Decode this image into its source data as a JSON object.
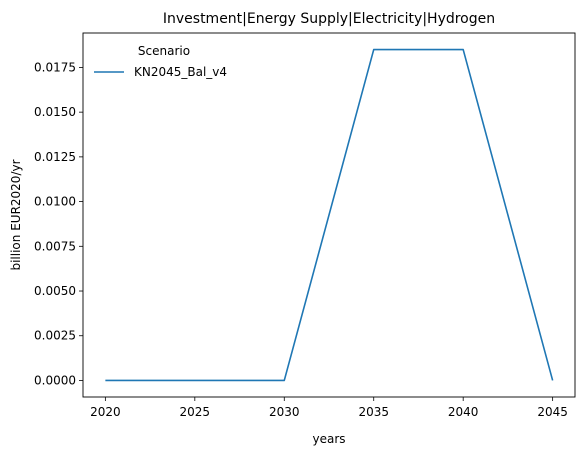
{
  "chart_data": {
    "type": "line",
    "title": "Investment|Energy Supply|Electricity|Hydrogen",
    "xlabel": "years",
    "ylabel": "billion EUR2020/yr",
    "x": [
      2020,
      2025,
      2030,
      2035,
      2040,
      2045
    ],
    "series": [
      {
        "name": "KN2045_Bal_v4",
        "color": "#1f77b4",
        "values": [
          0.0,
          0.0,
          0.0,
          0.0185,
          0.0185,
          0.0
        ]
      }
    ],
    "xticks": [
      2020,
      2025,
      2030,
      2035,
      2040,
      2045
    ],
    "xtick_labels": [
      "2020",
      "2025",
      "2030",
      "2035",
      "2040",
      "2045"
    ],
    "yticks": [
      0.0,
      0.0025,
      0.005,
      0.0075,
      0.01,
      0.0125,
      0.015,
      0.0175
    ],
    "ytick_labels": [
      "0.0000",
      "0.0025",
      "0.0050",
      "0.0075",
      "0.0100",
      "0.0125",
      "0.0150",
      "0.0175"
    ],
    "xlim": [
      2018.75,
      2046.25
    ],
    "ylim": [
      -0.000925,
      0.019425
    ],
    "grid": false,
    "legend": {
      "title": "Scenario",
      "placement": "top-left"
    }
  }
}
